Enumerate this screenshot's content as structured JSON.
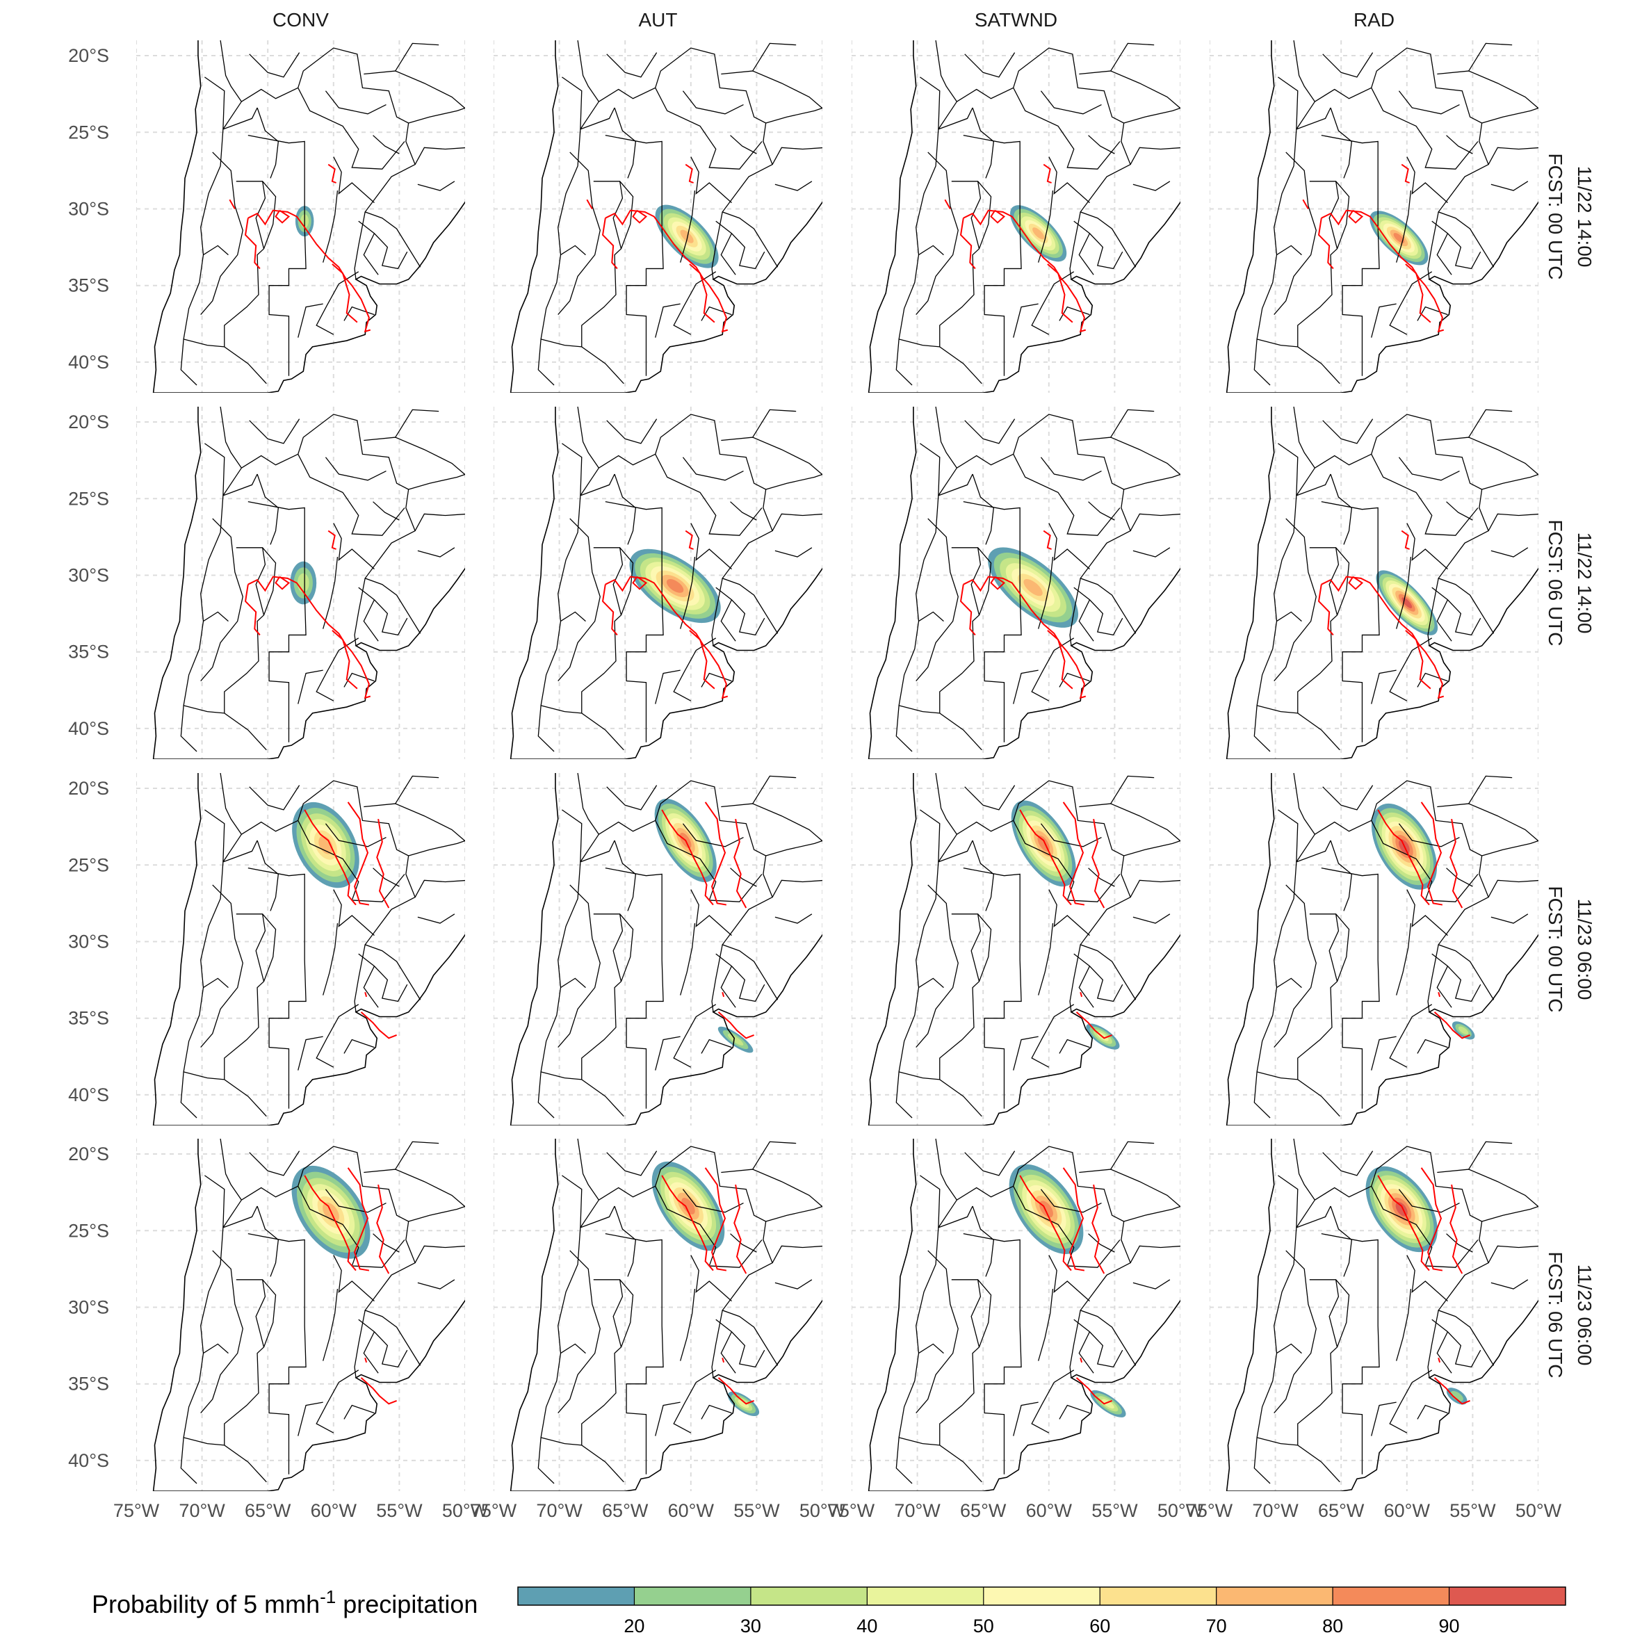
{
  "chart_data": {
    "type": "heatmap",
    "subtype": "faceted probability maps",
    "columns": [
      "CONV",
      "AUT",
      "SATWND",
      "RAD"
    ],
    "rows": [
      "11/22 14:00\nFCST: 00 UTC",
      "11/22 14:00\nFCST: 06 UTC",
      "11/23 06:00\nFCST: 00 UTC",
      "11/23 06:00\nFCST: 06 UTC"
    ],
    "row_lines": [
      [
        "11/22 14:00",
        "FCST: 00 UTC"
      ],
      [
        "11/22 14:00",
        "FCST: 06 UTC"
      ],
      [
        "11/23 06:00",
        "FCST: 00 UTC"
      ],
      [
        "11/23 06:00",
        "FCST: 06 UTC"
      ]
    ],
    "x_ticks": [
      "75°W",
      "70°W",
      "65°W",
      "60°W",
      "55°W",
      "50°W"
    ],
    "x_tick_values": [
      -75,
      -70,
      -65,
      -60,
      -55,
      -50
    ],
    "y_ticks": [
      "20°S",
      "25°S",
      "30°S",
      "35°S",
      "40°S"
    ],
    "y_tick_values": [
      -20,
      -25,
      -30,
      -35,
      -40
    ],
    "xlim": [
      -75,
      -50
    ],
    "ylim": [
      -42,
      -19
    ],
    "grid": true,
    "legend": {
      "title_main": "Probability of 5 mmh",
      "title_sup": "-1",
      "title_end": " precipitation",
      "placement": "bottom",
      "breaks": [
        10,
        20,
        30,
        40,
        50,
        60,
        70,
        80,
        90,
        100
      ],
      "tick_labels": [
        "20",
        "30",
        "40",
        "50",
        "60",
        "70",
        "80",
        "90"
      ],
      "colors": [
        "#5e9fb2",
        "#95d08f",
        "#c5e588",
        "#e9f49c",
        "#fdf8b2",
        "#fce18e",
        "#fbb872",
        "#f48a5a",
        "#de5950"
      ]
    },
    "observed_contour_color": "#ff0000",
    "blobs": [
      [
        {
          "lon": -62.2,
          "lat": -30.8,
          "rx": 0.7,
          "ry": 1.0,
          "rot": 0,
          "p": 35
        }
      ],
      [
        {
          "lon": -60.3,
          "lat": -31.8,
          "rx": 3.1,
          "ry": 1.2,
          "rot": 45,
          "p": 75
        }
      ],
      [
        {
          "lon": -60.8,
          "lat": -31.6,
          "rx": 2.8,
          "ry": 1.0,
          "rot": 45,
          "p": 70
        }
      ],
      [
        {
          "lon": -60.6,
          "lat": -31.9,
          "rx": 2.8,
          "ry": 1.0,
          "rot": 42,
          "p": 80
        }
      ],
      [
        {
          "lon": -62.3,
          "lat": -30.5,
          "rx": 1.0,
          "ry": 1.4,
          "rot": 0,
          "p": 30
        }
      ],
      [
        {
          "lon": -61.2,
          "lat": -30.7,
          "rx": 4.0,
          "ry": 1.7,
          "rot": 35,
          "p": 80
        }
      ],
      [
        {
          "lon": -61.2,
          "lat": -30.8,
          "rx": 4.2,
          "ry": 1.6,
          "rot": 40,
          "p": 75
        }
      ],
      [
        {
          "lon": -60.0,
          "lat": -31.8,
          "rx": 3.2,
          "ry": 1.0,
          "rot": 47,
          "p": 95
        }
      ],
      [
        {
          "lon": -60.6,
          "lat": -23.7,
          "rx": 3.5,
          "ry": 1.9,
          "rot": 62,
          "p": 75
        }
      ],
      [
        {
          "lon": -60.4,
          "lat": -23.4,
          "rx": 3.6,
          "ry": 1.4,
          "rot": 58,
          "p": 85
        },
        {
          "lon": -56.6,
          "lat": -36.4,
          "rx": 1.6,
          "ry": 0.4,
          "rot": 35,
          "p": 35
        }
      ],
      [
        {
          "lon": -60.4,
          "lat": -23.6,
          "rx": 3.7,
          "ry": 1.5,
          "rot": 58,
          "p": 85
        },
        {
          "lon": -55.9,
          "lat": -36.2,
          "rx": 1.5,
          "ry": 0.5,
          "rot": 35,
          "p": 40
        }
      ],
      [
        {
          "lon": -60.2,
          "lat": -23.8,
          "rx": 3.6,
          "ry": 1.7,
          "rot": 60,
          "p": 90
        },
        {
          "lon": -55.7,
          "lat": -35.8,
          "rx": 1.0,
          "ry": 0.4,
          "rot": 35,
          "p": 30
        }
      ],
      [
        {
          "lon": -60.2,
          "lat": -23.8,
          "rx": 4.0,
          "ry": 2.0,
          "rot": 55,
          "p": 75
        }
      ],
      [
        {
          "lon": -60.2,
          "lat": -23.4,
          "rx": 3.9,
          "ry": 1.7,
          "rot": 55,
          "p": 85
        },
        {
          "lon": -56.0,
          "lat": -36.3,
          "rx": 1.4,
          "ry": 0.5,
          "rot": 35,
          "p": 40
        }
      ],
      [
        {
          "lon": -60.2,
          "lat": -23.6,
          "rx": 3.9,
          "ry": 1.8,
          "rot": 55,
          "p": 85
        },
        {
          "lon": -55.5,
          "lat": -36.3,
          "rx": 1.6,
          "ry": 0.5,
          "rot": 35,
          "p": 40
        }
      ],
      [
        {
          "lon": -60.4,
          "lat": -23.6,
          "rx": 3.7,
          "ry": 1.8,
          "rot": 55,
          "p": 90
        },
        {
          "lon": -56.2,
          "lat": -35.8,
          "rx": 0.9,
          "ry": 0.4,
          "rot": 35,
          "p": 25
        }
      ]
    ]
  }
}
